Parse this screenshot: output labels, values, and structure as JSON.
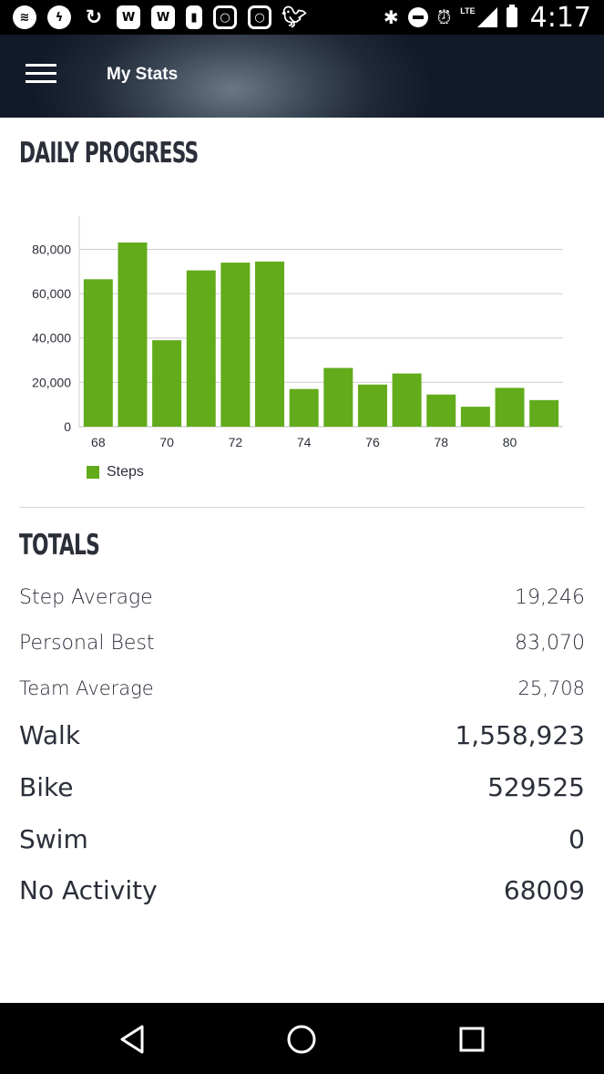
{
  "status_bar": {
    "time": "4:17",
    "network": "LTE",
    "icons": [
      "spotify-icon",
      "messenger-icon",
      "sync-icon",
      "w-app-icon",
      "w-app-icon",
      "bell-icon",
      "instagram-icon",
      "instagram-icon",
      "twitter-icon",
      "bluetooth-icon",
      "do-not-disturb-icon",
      "alarm-icon",
      "signal-icon",
      "battery-icon"
    ]
  },
  "app_bar": {
    "title": "My Stats",
    "menu_icon": "hamburger-menu-icon"
  },
  "daily_progress": {
    "title": "DAILY PROGRESS",
    "legend_label": "Steps"
  },
  "chart_data": {
    "type": "bar",
    "series": [
      {
        "name": "Steps",
        "color": "#62ab1a",
        "x": [
          68,
          69,
          70,
          71,
          72,
          73,
          74,
          75,
          76,
          77,
          78,
          79,
          80,
          81
        ],
        "values": [
          66500,
          83070,
          39000,
          70500,
          74000,
          74500,
          17000,
          26500,
          19000,
          24000,
          14500,
          9000,
          17500,
          12000
        ]
      }
    ],
    "x_tick_labels": [
      "68",
      "70",
      "72",
      "74",
      "76",
      "78",
      "80"
    ],
    "y_tick_labels": [
      "0",
      "20,000",
      "40,000",
      "60,000",
      "80,000"
    ],
    "ylim": [
      0,
      95000
    ],
    "grid": "horizontal",
    "legend_placement": "bottom-left"
  },
  "totals": {
    "title": "TOTALS",
    "rows": [
      {
        "label": "Step Average",
        "value": "19,246"
      },
      {
        "label": "Personal Best",
        "value": "83,070"
      },
      {
        "label": "Team Average",
        "value": "25,708"
      },
      {
        "label": "Walk",
        "value": "1,558,923"
      },
      {
        "label": "Bike",
        "value": "529525"
      },
      {
        "label": "Swim",
        "value": "0"
      },
      {
        "label": "No Activity",
        "value": "68009"
      }
    ]
  },
  "nav_bar": {
    "icons": [
      "back-icon",
      "home-icon",
      "recents-icon"
    ]
  }
}
